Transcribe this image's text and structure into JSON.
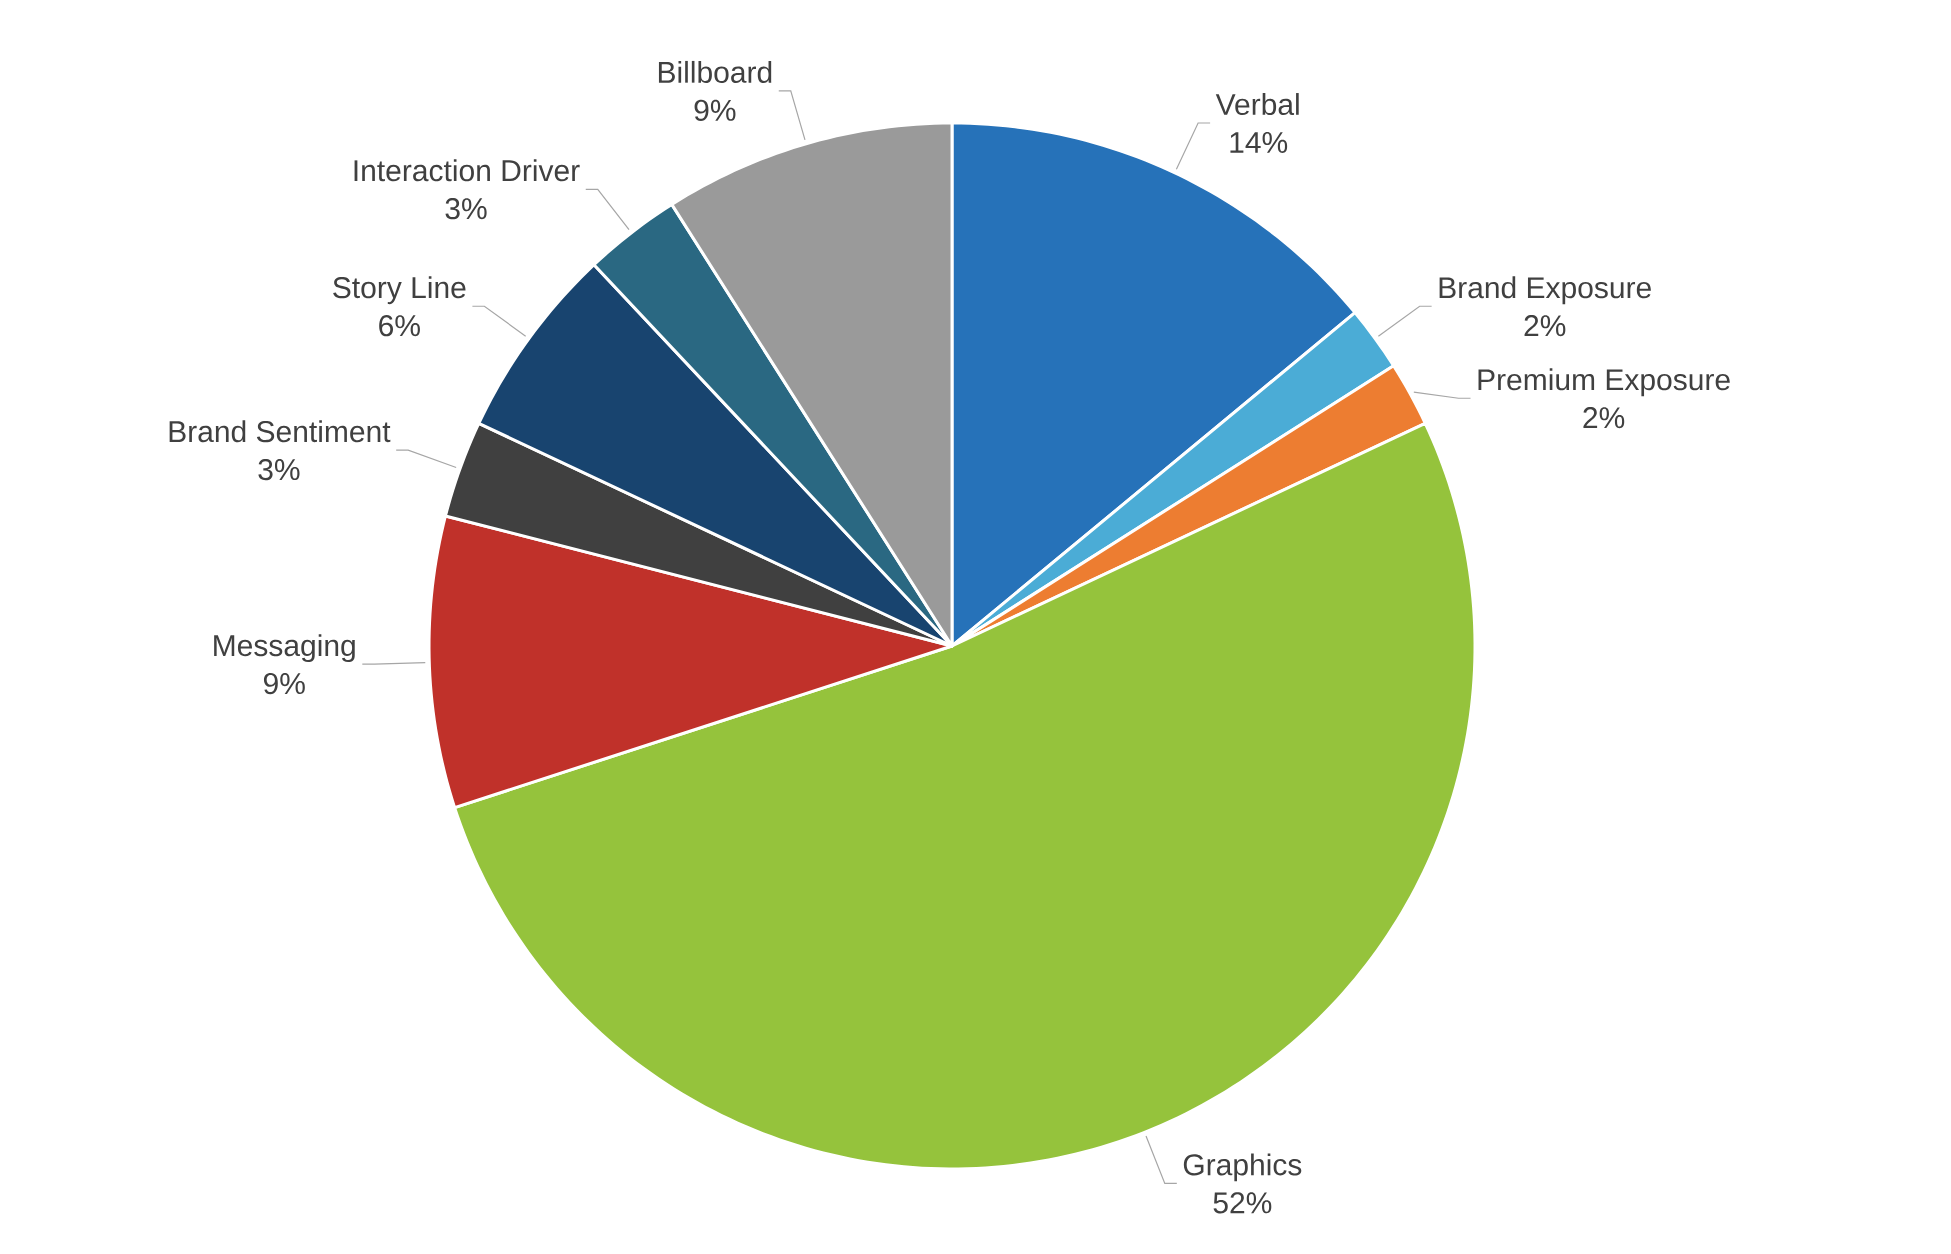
{
  "chart_data": {
    "type": "pie",
    "categories": [
      "Verbal",
      "Brand Exposure",
      "Premium Exposure",
      "Graphics",
      "Messaging",
      "Brand Sentiment",
      "Story Line",
      "Interaction Driver",
      "Billboard"
    ],
    "values": [
      14,
      2,
      2,
      52,
      9,
      3,
      6,
      3,
      9
    ],
    "value_labels": [
      "14%",
      "2%",
      "2%",
      "52%",
      "9%",
      "3%",
      "6%",
      "3%",
      "9%"
    ],
    "colors": [
      "#2672b9",
      "#4bacd6",
      "#ed7d31",
      "#95c33c",
      "#c0312a",
      "#404040",
      "#18446f",
      "#2a6882",
      "#9a9a9a"
    ]
  }
}
